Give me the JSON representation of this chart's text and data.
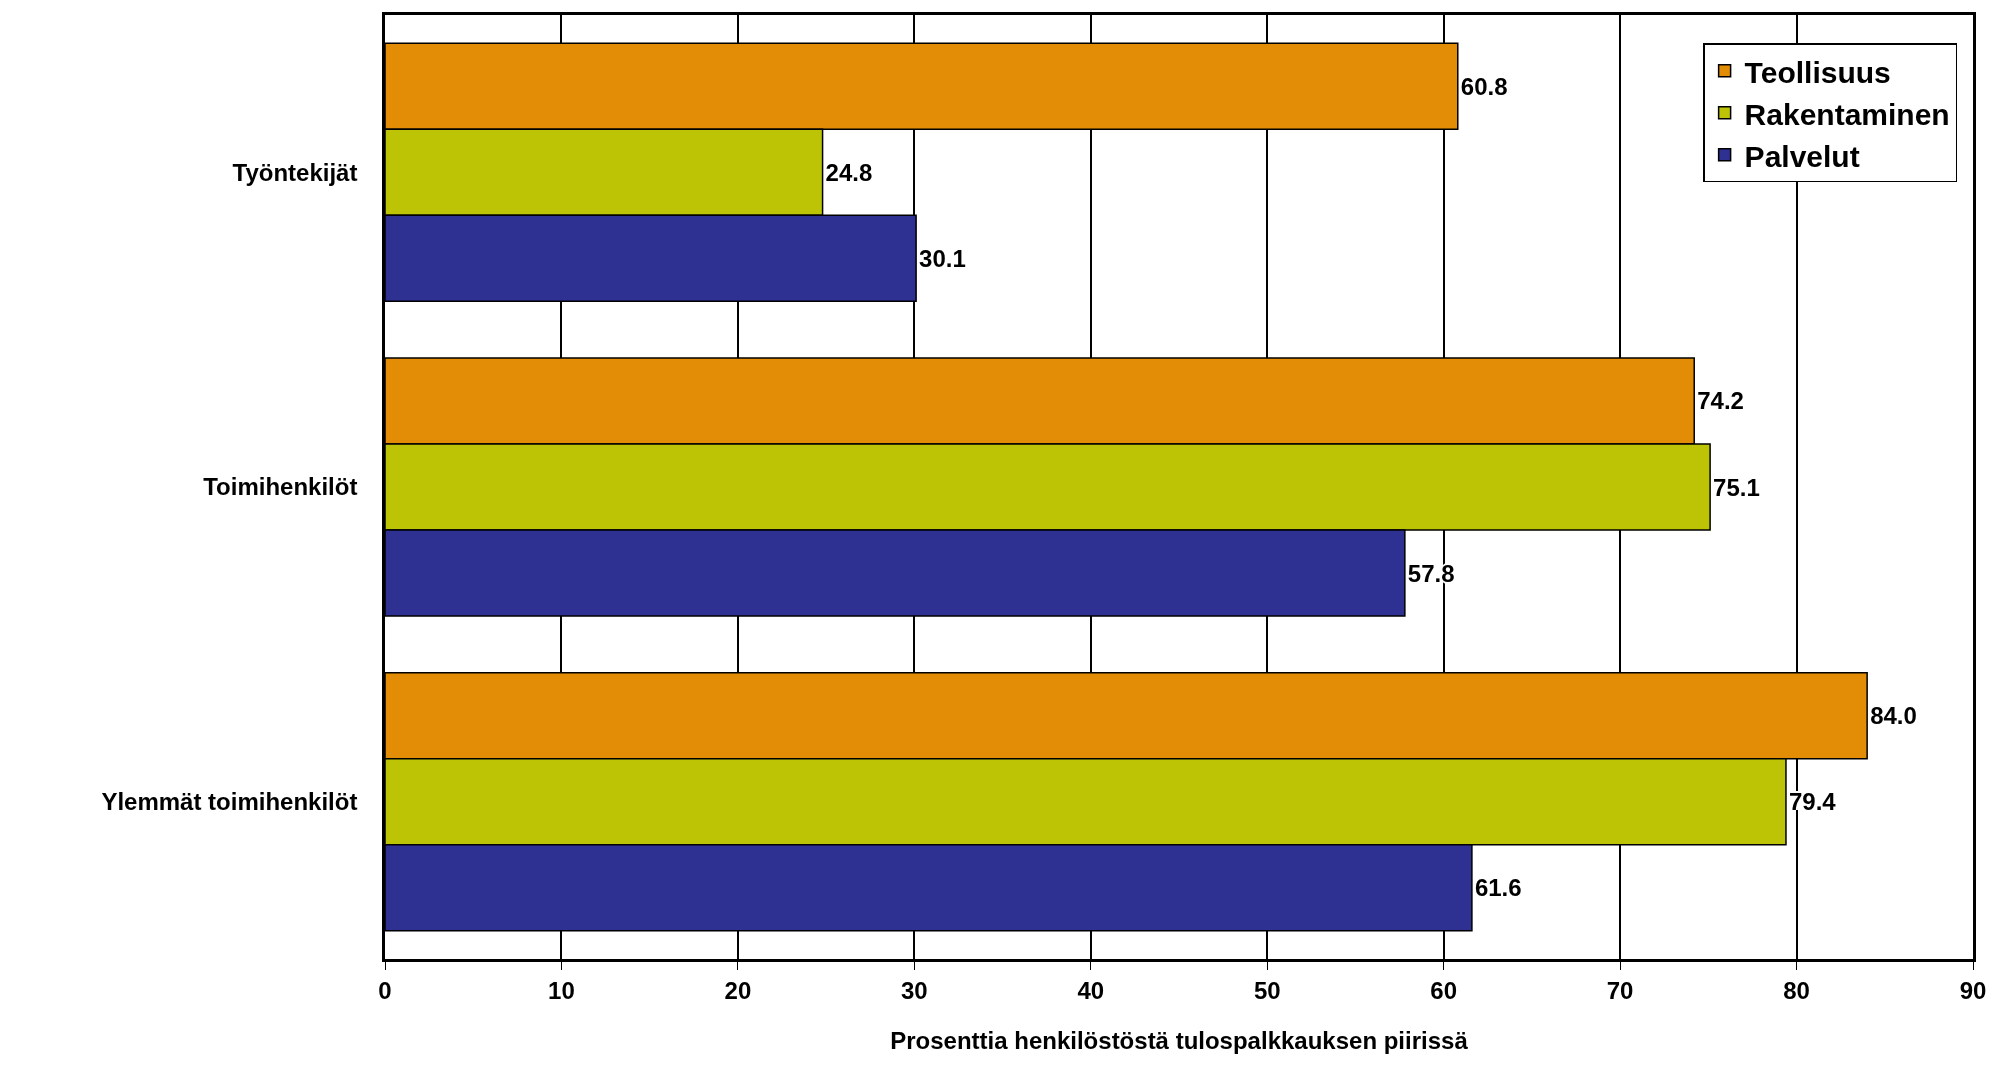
{
  "chart_data": {
    "type": "bar",
    "orientation": "horizontal",
    "xlabel": "Prosenttia henkilöstöstä tulospalkkauksen piirissä",
    "categories": [
      "Työntekijät",
      "Toimihenkilöt",
      "Ylemmät toimihenkilöt"
    ],
    "series": [
      {
        "name": "Teollisuus",
        "color": "#e38c06",
        "values": [
          60.8,
          74.2,
          84.0
        ],
        "value_labels": [
          "60.8",
          "74.2",
          "84.0"
        ]
      },
      {
        "name": "Rakentaminen",
        "color": "#bcc405",
        "values": [
          24.8,
          75.1,
          79.4
        ],
        "value_labels": [
          "24.8",
          "75.1",
          "79.4"
        ]
      },
      {
        "name": "Palvelut",
        "color": "#2e3192",
        "values": [
          30.1,
          57.8,
          61.6
        ],
        "value_labels": [
          "30.1",
          "57.8",
          "61.6"
        ]
      }
    ],
    "xlim": [
      0,
      90
    ],
    "xticks": [
      0,
      10,
      20,
      30,
      40,
      50,
      60,
      70,
      80,
      90
    ],
    "grid": "x",
    "legend": "top right"
  }
}
